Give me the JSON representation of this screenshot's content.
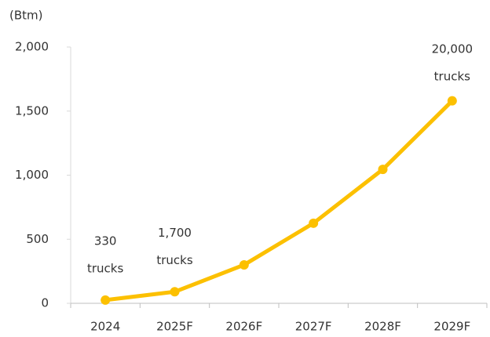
{
  "chart_data": {
    "type": "line",
    "y_label": "(Btm)",
    "categories": [
      "2024",
      "2025F",
      "2026F",
      "2027F",
      "2028F",
      "2029F"
    ],
    "series": [
      {
        "name": "Value",
        "color": "#fcc000",
        "values": [
          25,
          90,
          300,
          625,
          1045,
          1580
        ]
      }
    ],
    "ylim": [
      0,
      2000
    ],
    "yticks": [
      0,
      500,
      {
        "value": 1000,
        "label": "1,000"
      },
      {
        "value": 1500,
        "label": "1,500"
      },
      {
        "value": 2000,
        "label": "2,000"
      }
    ],
    "grid": false,
    "annotations": [
      {
        "x": "2024",
        "lines": [
          "330",
          "trucks"
        ]
      },
      {
        "x": "2025F",
        "lines": [
          "1,700",
          "trucks"
        ]
      },
      {
        "x": "2029F",
        "lines": [
          "20,000",
          "trucks"
        ]
      }
    ]
  }
}
